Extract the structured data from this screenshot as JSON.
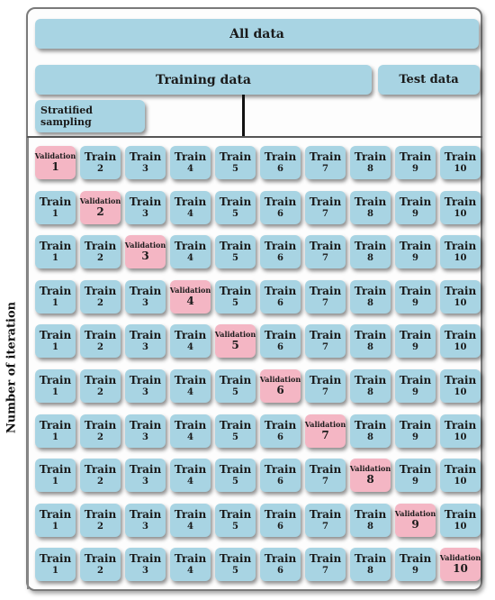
{
  "header": {
    "all_data": "All data",
    "training_data": "Training data",
    "test_data": "Test data",
    "stratified": "Stratified sampling"
  },
  "axis_label": "Number of iteration",
  "labels": {
    "train": "Train",
    "validation": "Validation"
  },
  "grid": {
    "rows": 10,
    "cols": 10,
    "validation_fold_per_row": [
      1,
      2,
      3,
      4,
      5,
      6,
      7,
      8,
      9,
      10
    ]
  },
  "colors": {
    "train": "#a8d4e3",
    "validation": "#f4b6c4"
  }
}
